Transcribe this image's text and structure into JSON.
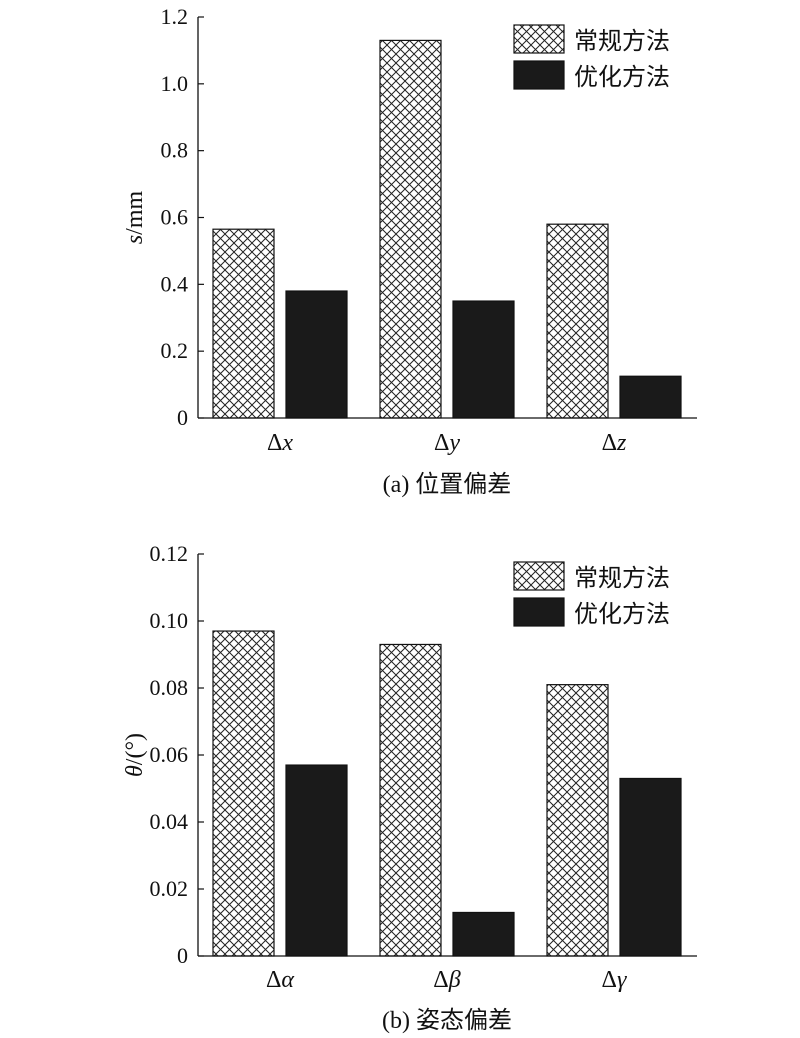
{
  "colors": {
    "conventional_fill": "hatch-crosshatch",
    "optimized_fill": "#1a1a1a",
    "axis": "#111111"
  },
  "chart_data": [
    {
      "type": "bar",
      "caption": "(a) 位置偏差",
      "ylabel": "s/mm",
      "ylim": [
        0,
        1.2
      ],
      "yticks": [
        "0",
        "0.2",
        "0.4",
        "0.6",
        "0.8",
        "1.0",
        "1.2"
      ],
      "categories": [
        "Δx",
        "Δy",
        "Δz"
      ],
      "series": [
        {
          "name": "常规方法",
          "style": "crosshatch",
          "values": [
            0.565,
            1.13,
            0.58
          ]
        },
        {
          "name": "优化方法",
          "style": "solid",
          "values": [
            0.38,
            0.35,
            0.125
          ]
        }
      ],
      "legend": "top-right",
      "grid": false
    },
    {
      "type": "bar",
      "caption": "(b) 姿态偏差",
      "ylabel": "θ/(°)",
      "ylim": [
        0,
        0.12
      ],
      "yticks": [
        "0",
        "0.02",
        "0.04",
        "0.06",
        "0.08",
        "0.10",
        "0.12"
      ],
      "categories": [
        "Δα",
        "Δβ",
        "Δγ"
      ],
      "series": [
        {
          "name": "常规方法",
          "style": "crosshatch",
          "values": [
            0.097,
            0.093,
            0.081
          ]
        },
        {
          "name": "优化方法",
          "style": "solid",
          "values": [
            0.057,
            0.013,
            0.053
          ]
        }
      ],
      "legend": "top-right",
      "grid": false
    }
  ]
}
